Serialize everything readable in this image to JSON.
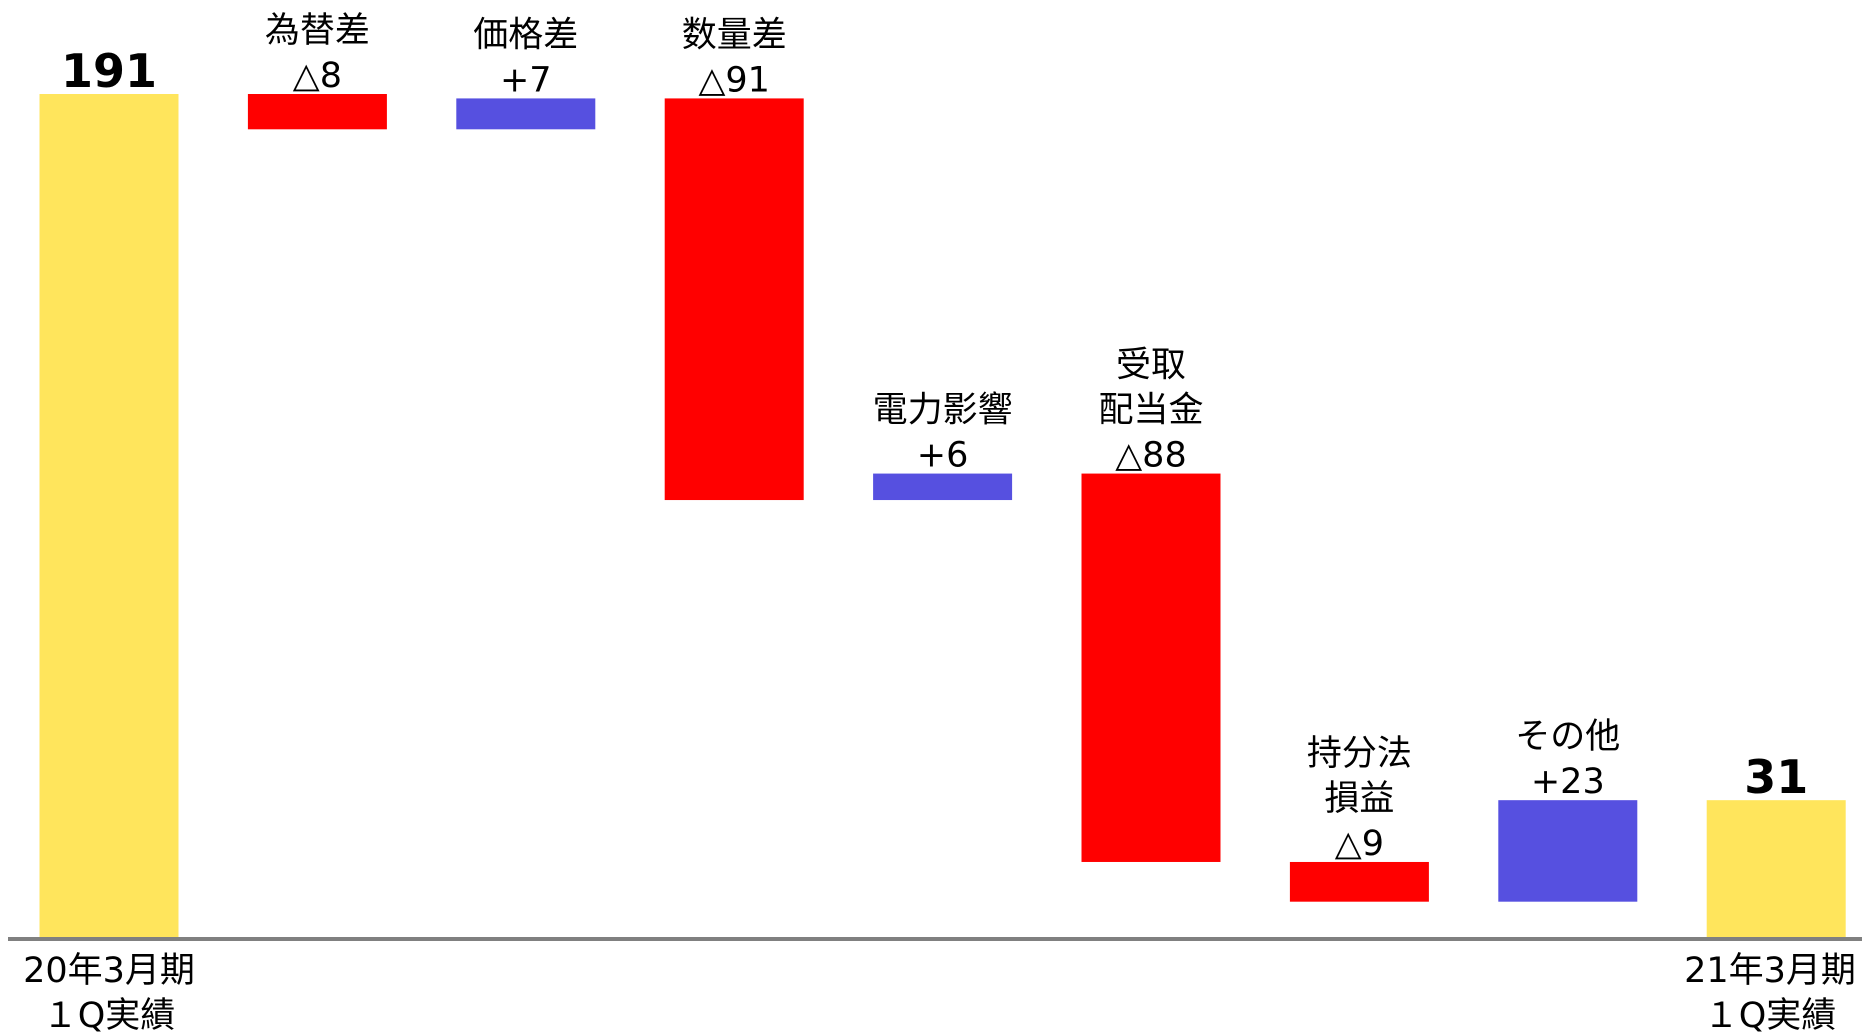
{
  "chart_data": {
    "type": "waterfall",
    "categories": [
      [
        "20年3月期",
        "１Q実績"
      ],
      [
        "為替差"
      ],
      [
        "価格差"
      ],
      [
        "数量差"
      ],
      [
        "電力影響"
      ],
      [
        "受取",
        "配当金"
      ],
      [
        "持分法",
        "損益"
      ],
      [
        "その他"
      ],
      [
        "21年3月期",
        "１Q実績"
      ]
    ],
    "values": [
      191,
      -8,
      7,
      -91,
      6,
      -88,
      -9,
      23,
      31
    ],
    "value_labels": [
      "191",
      "△8",
      "+7",
      "△91",
      "+6",
      "△88",
      "△9",
      "+23",
      "31"
    ],
    "measure": [
      "total",
      "relative",
      "relative",
      "relative",
      "relative",
      "relative",
      "relative",
      "relative",
      "total"
    ],
    "colors": {
      "total": "#ffe55c",
      "increase": "#5650e0",
      "decrease": "#ff0000"
    }
  }
}
